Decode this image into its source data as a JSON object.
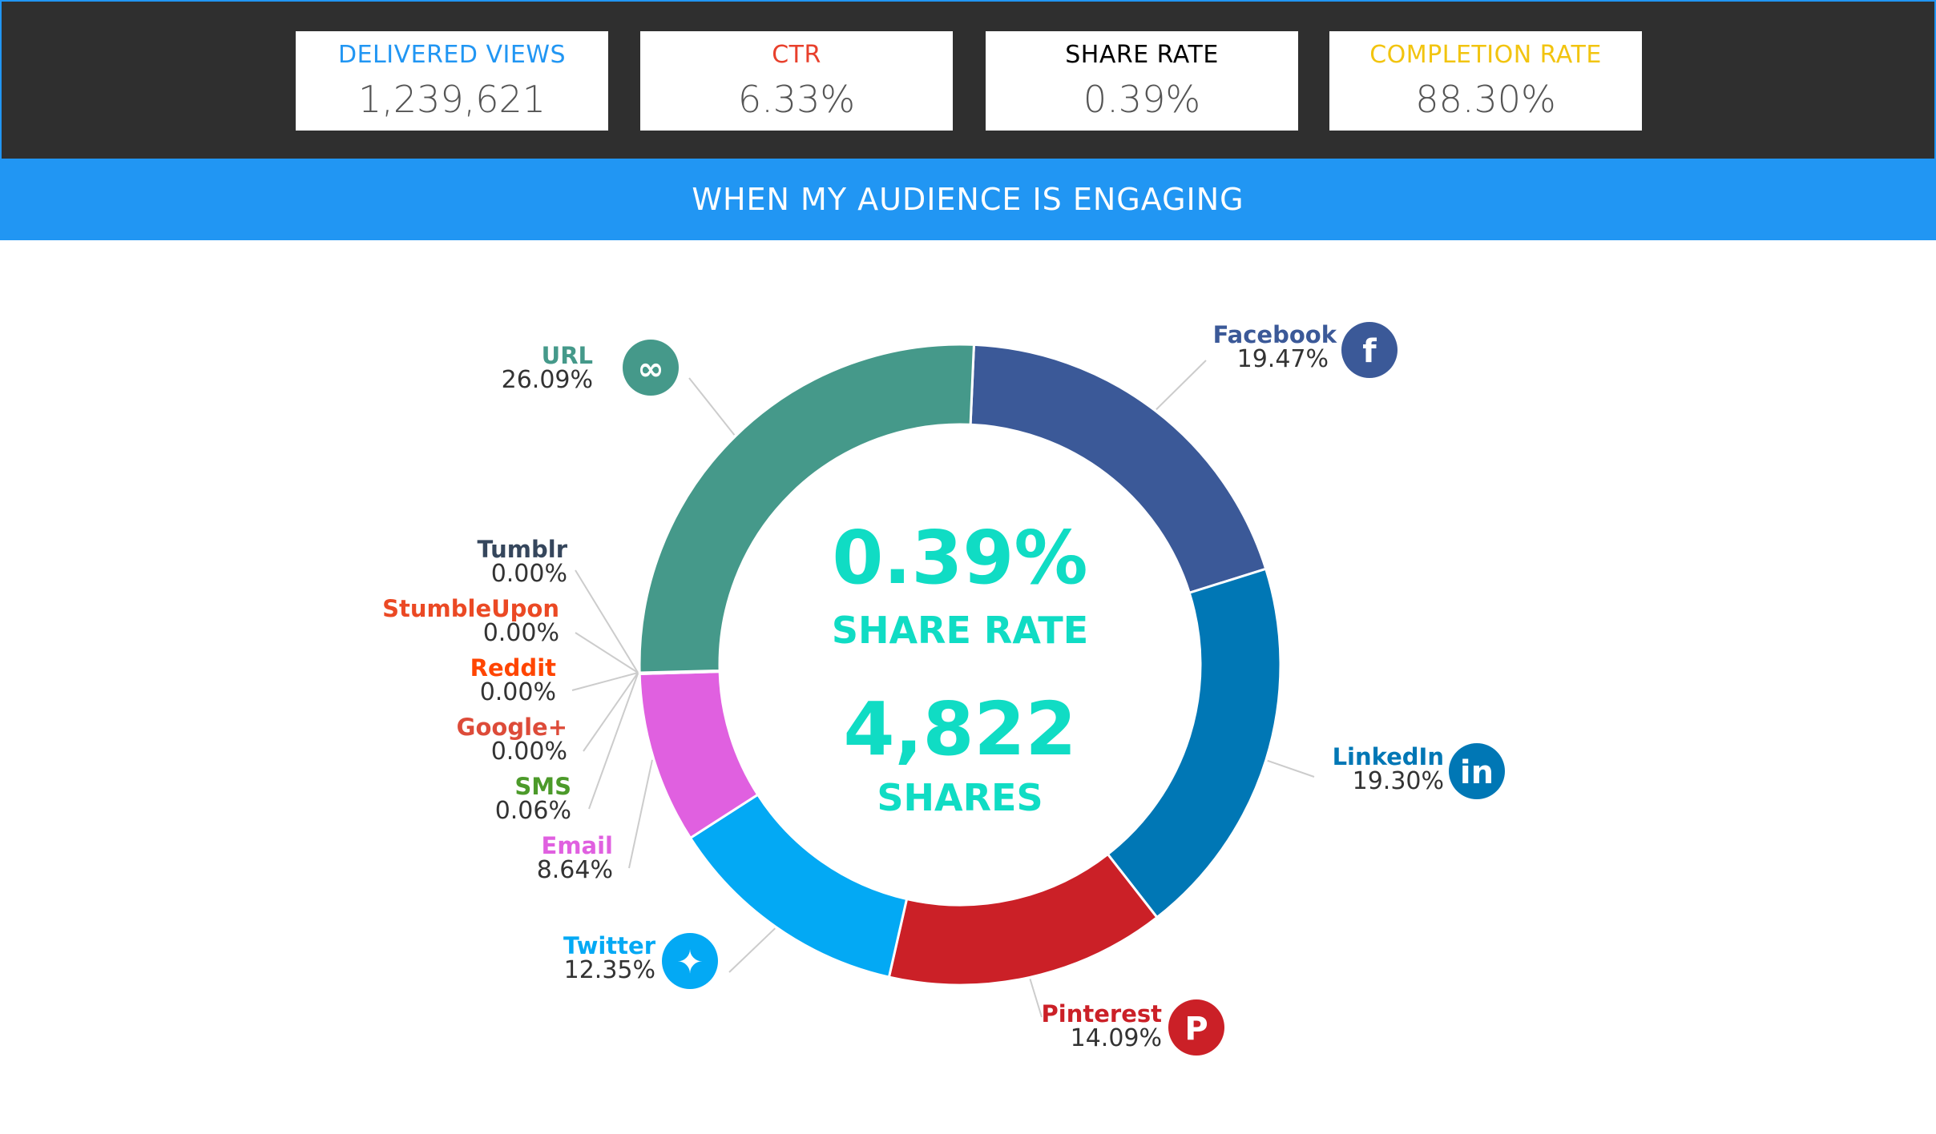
{
  "metrics": [
    {
      "label": "DELIVERED VIEWS",
      "value": "1,239,621",
      "color": "#2196f3",
      "active": false
    },
    {
      "label": "CTR",
      "value": "6.33%",
      "color": "#e8402c",
      "active": false
    },
    {
      "label": "SHARE RATE",
      "value": "0.39%",
      "color": "#ffffff",
      "active": true
    },
    {
      "label": "COMPLETION RATE",
      "value": "88.30%",
      "color": "#f2c40f",
      "active": false
    }
  ],
  "banner": {
    "title": "WHEN MY AUDIENCE IS ENGAGING"
  },
  "center": {
    "rate_value": "0.39%",
    "rate_label": "SHARE RATE",
    "shares_value": "4,822",
    "shares_label": "SHARES"
  },
  "chart_data": {
    "type": "pie",
    "donut": true,
    "slices": [
      {
        "name": "Facebook",
        "value": 19.47,
        "label": "19.47%",
        "color": "#3b5998",
        "icon": "facebook-icon"
      },
      {
        "name": "LinkedIn",
        "value": 19.3,
        "label": "19.30%",
        "color": "#0077b5",
        "icon": "linkedin-icon"
      },
      {
        "name": "Pinterest",
        "value": 14.09,
        "label": "14.09%",
        "color": "#cb2027",
        "icon": "pinterest-icon"
      },
      {
        "name": "Twitter",
        "value": 12.35,
        "label": "12.35%",
        "color": "#03a9f4",
        "icon": "twitter-icon"
      },
      {
        "name": "Email",
        "value": 8.64,
        "label": "8.64%",
        "color": "#e060e0",
        "icon": ""
      },
      {
        "name": "SMS",
        "value": 0.06,
        "label": "0.06%",
        "color": "#4c9a2a",
        "icon": ""
      },
      {
        "name": "Google+",
        "value": 0.0,
        "label": "0.00%",
        "color": "#dd4b39",
        "icon": ""
      },
      {
        "name": "Reddit",
        "value": 0.0,
        "label": "0.00%",
        "color": "#ff4500",
        "icon": ""
      },
      {
        "name": "StumbleUpon",
        "value": 0.0,
        "label": "0.00%",
        "color": "#eb4924",
        "icon": ""
      },
      {
        "name": "Tumblr",
        "value": 0.0,
        "label": "0.00%",
        "color": "#35465c",
        "icon": ""
      },
      {
        "name": "URL",
        "value": 26.09,
        "label": "26.09%",
        "color": "#45998a",
        "icon": "link-icon"
      }
    ]
  }
}
